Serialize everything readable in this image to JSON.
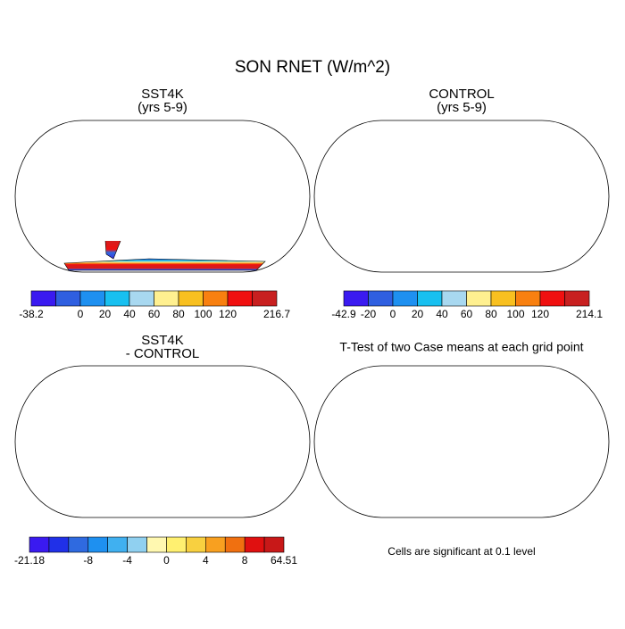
{
  "title": "SON RNET (W/m^2)",
  "panels": [
    {
      "title": "SST4K",
      "subtitle": "(yrs 5-9)",
      "style": "climate",
      "colorbar": {
        "colors": [
          "#3a1af0",
          "#2f5fe0",
          "#1e90f0",
          "#18c0f0",
          "#a8d8f0",
          "#fff090",
          "#f8c020",
          "#f88010",
          "#f01010",
          "#c82020"
        ],
        "labels": [
          "-38.2",
          "0",
          "20",
          "40",
          "60",
          "80",
          "100",
          "120",
          "216.7"
        ]
      }
    },
    {
      "title": "CONTROL",
      "subtitle": "(yrs 5-9)",
      "style": "climate",
      "colorbar": {
        "colors": [
          "#3a1af0",
          "#2f5fe0",
          "#1e90f0",
          "#18c0f0",
          "#a8d8f0",
          "#fff090",
          "#f8c020",
          "#f88010",
          "#f01010",
          "#c82020"
        ],
        "labels": [
          "-42.9",
          "-20",
          "0",
          "20",
          "40",
          "60",
          "80",
          "100",
          "120",
          "214.1"
        ]
      }
    },
    {
      "title": "SST4K",
      "subtitle": "- CONTROL",
      "style": "difference",
      "colorbar": {
        "colors": [
          "#3a1af0",
          "#2030e8",
          "#2f6ae0",
          "#1e90f0",
          "#40b0f0",
          "#90d0f0",
          "#fff8b0",
          "#fff070",
          "#f8d040",
          "#f8a020",
          "#f07010",
          "#e01010",
          "#c81818"
        ],
        "labels": [
          "-21.18",
          "-8",
          "-4",
          "0",
          "4",
          "8",
          "64.51"
        ]
      }
    },
    {
      "title": "T-Test of two Case means at each grid point",
      "style": "ttest",
      "note": "Cells are significant at 0.1 level"
    }
  ]
}
